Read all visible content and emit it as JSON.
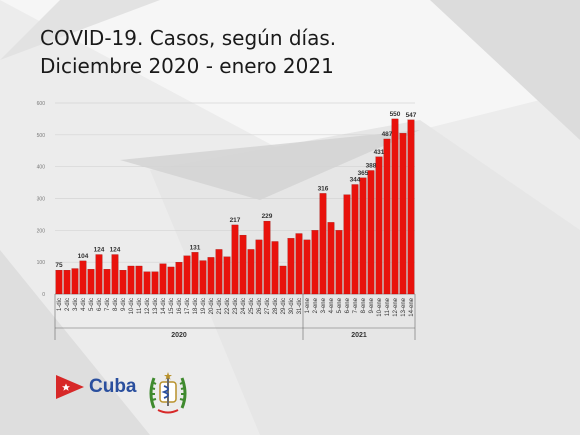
{
  "title": {
    "line1": "COVID-19. Casos, según días.",
    "line2": "Diciembre 2020 - enero 2021"
  },
  "brand": {
    "name": "Cuba",
    "flag_icon": "cuba-flag-star-icon",
    "seal_icon": "health-ministry-seal-icon",
    "colors": {
      "blue": "#2a4f9e",
      "red": "#d72828"
    }
  },
  "chart_data": {
    "type": "bar",
    "bar_color": "#e8120c",
    "grid": true,
    "legend": "none",
    "ylim": [
      0,
      600
    ],
    "yticks": [
      0,
      100,
      200,
      300,
      400,
      500,
      600
    ],
    "categories": [
      "1-dic",
      "2-dic",
      "3-dic",
      "4-dic",
      "5-dic",
      "6-dic",
      "7-dic",
      "8-dic",
      "9-dic",
      "10-dic",
      "11-dic",
      "12-dic",
      "13-dic",
      "14-dic",
      "15-dic",
      "16-dic",
      "17-dic",
      "18-dic",
      "19-dic",
      "20-dic",
      "21-dic",
      "22-dic",
      "23-dic",
      "24-dic",
      "25-dic",
      "26-dic",
      "27-dic",
      "28-dic",
      "29-dic",
      "30-dic",
      "31-dic",
      "1-ene",
      "2-ene",
      "3-ene",
      "4-ene",
      "5-ene",
      "6-ene",
      "7-ene",
      "8-ene",
      "9-ene",
      "10-ene",
      "11-ene",
      "12-ene",
      "13-ene",
      "14-ene"
    ],
    "values": [
      75,
      75,
      80,
      104,
      78,
      124,
      78,
      124,
      75,
      88,
      88,
      70,
      70,
      95,
      85,
      100,
      120,
      131,
      105,
      115,
      140,
      117,
      217,
      185,
      140,
      170,
      229,
      165,
      88,
      175,
      190,
      170,
      200,
      316,
      225,
      200,
      312,
      344,
      365,
      388,
      431,
      487,
      550,
      505,
      547
    ],
    "data_labels": [
      {
        "index": 0,
        "text": "75"
      },
      {
        "index": 3,
        "text": "104"
      },
      {
        "index": 5,
        "text": "124"
      },
      {
        "index": 7,
        "text": "124"
      },
      {
        "index": 17,
        "text": "131"
      },
      {
        "index": 22,
        "text": "217"
      },
      {
        "index": 26,
        "text": "229"
      },
      {
        "index": 33,
        "text": "316"
      },
      {
        "index": 37,
        "text": "344"
      },
      {
        "index": 38,
        "text": "365"
      },
      {
        "index": 39,
        "text": "388"
      },
      {
        "index": 40,
        "text": "431"
      },
      {
        "index": 41,
        "text": "487"
      },
      {
        "index": 42,
        "text": "550"
      },
      {
        "index": 44,
        "text": "547"
      }
    ],
    "groups": [
      {
        "label": "2020",
        "start": 0,
        "end": 30
      },
      {
        "label": "2021",
        "start": 31,
        "end": 44
      }
    ]
  }
}
